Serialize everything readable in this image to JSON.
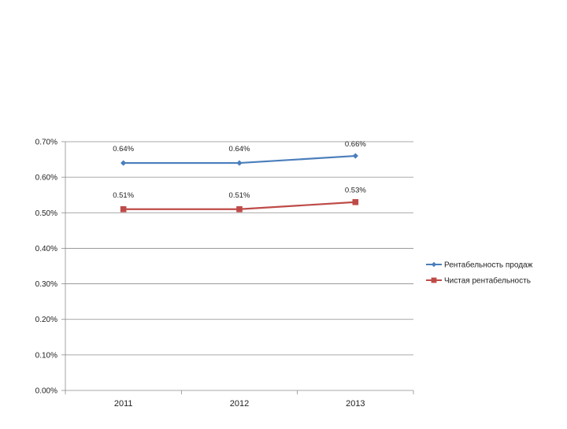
{
  "chart_data": {
    "type": "line",
    "title": "",
    "xlabel": "",
    "ylabel": "",
    "categories": [
      "2011",
      "2012",
      "2013"
    ],
    "ylim": [
      0,
      0.007
    ],
    "y_ticks": [
      0,
      0.001,
      0.002,
      0.003,
      0.004,
      0.005,
      0.006,
      0.007
    ],
    "y_tick_labels": [
      "0.00%",
      "0.10%",
      "0.20%",
      "0.30%",
      "0.40%",
      "0.50%",
      "0.60%",
      "0.70%"
    ],
    "grid": true,
    "legend_position": "right",
    "series": [
      {
        "name": "Рентабельность продаж",
        "values": [
          0.0064,
          0.0064,
          0.0066
        ],
        "labels": [
          "0.64%",
          "0.64%",
          "0.66%"
        ],
        "color": "#4a7ebb",
        "marker": "diamond"
      },
      {
        "name": "Чистая рентабельность",
        "values": [
          0.0051,
          0.0051,
          0.0053
        ],
        "labels": [
          "0.51%",
          "0.51%",
          "0.53%"
        ],
        "color": "#be4b48",
        "marker": "square"
      }
    ]
  }
}
